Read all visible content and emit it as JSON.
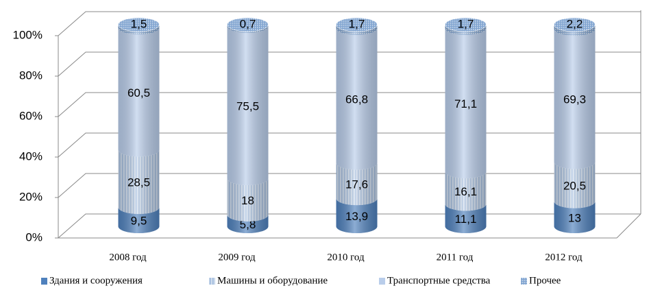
{
  "chart_data": {
    "type": "cylinder",
    "stacking": "percent",
    "categories": [
      "2008 год",
      "2009 год",
      "2010 год",
      "2011 год",
      "2012 год"
    ],
    "series": [
      {
        "name": "Здания и сооружения",
        "color": "#4f81bd",
        "values": [
          9.5,
          5.8,
          13.9,
          11.1,
          13
        ],
        "value_labels": [
          "9,5",
          "5,8",
          "13,9",
          "11,1",
          "13"
        ]
      },
      {
        "name": "Машины и оборудование",
        "color": "#a9c1e0",
        "values": [
          28.5,
          18,
          17.6,
          16.1,
          20.5
        ],
        "value_labels": [
          "28,5",
          "18",
          "17,6",
          "16,1",
          "20,5"
        ]
      },
      {
        "name": "Транспортные средства",
        "color": "#b9cdea",
        "values": [
          60.5,
          75.5,
          66.8,
          71.1,
          69.3
        ],
        "value_labels": [
          "60,5",
          "75,5",
          "66,8",
          "71,1",
          "69,3"
        ]
      },
      {
        "name": "Прочее",
        "color": "#7fa3d0",
        "values": [
          1.5,
          0.7,
          1.7,
          1.7,
          2.2
        ],
        "value_labels": [
          "1,5",
          "0,7",
          "1,7",
          "1,7",
          "2,2"
        ]
      }
    ],
    "ylim": [
      0,
      100
    ],
    "yticks": [
      {
        "value": 0,
        "label": "0%"
      },
      {
        "value": 20,
        "label": "20%"
      },
      {
        "value": 40,
        "label": "40%"
      },
      {
        "value": 60,
        "label": "60%"
      },
      {
        "value": 80,
        "label": "80%"
      },
      {
        "value": 100,
        "label": "100%"
      }
    ],
    "grid": true
  }
}
